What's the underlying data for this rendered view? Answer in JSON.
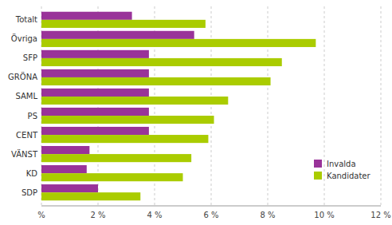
{
  "chart_data": {
    "type": "bar",
    "orientation": "horizontal",
    "categories": [
      "SDP",
      "KD",
      "VÄNST",
      "CENT",
      "PS",
      "SAML",
      "GRÖNA",
      "SFP",
      "Övriga",
      "Totalt"
    ],
    "series": [
      {
        "name": "Invalda",
        "color": "#993399",
        "values": [
          2.0,
          1.6,
          1.7,
          3.8,
          3.8,
          3.8,
          3.8,
          3.8,
          5.4,
          3.2
        ]
      },
      {
        "name": "Kandidater",
        "color": "#aacc00",
        "values": [
          3.5,
          5.0,
          5.3,
          5.9,
          6.1,
          6.6,
          8.1,
          8.5,
          9.7,
          5.8
        ]
      }
    ],
    "xlim": [
      0,
      12
    ],
    "xticks": [
      {
        "value": 0,
        "label": "%"
      },
      {
        "value": 2,
        "label": "2 %"
      },
      {
        "value": 4,
        "label": "4 %"
      },
      {
        "value": 6,
        "label": "6 %"
      },
      {
        "value": 8,
        "label": "8 %"
      },
      {
        "value": 10,
        "label": "10 %"
      },
      {
        "value": 12,
        "label": "12 %"
      }
    ],
    "grid": true,
    "legend": "lower right"
  }
}
